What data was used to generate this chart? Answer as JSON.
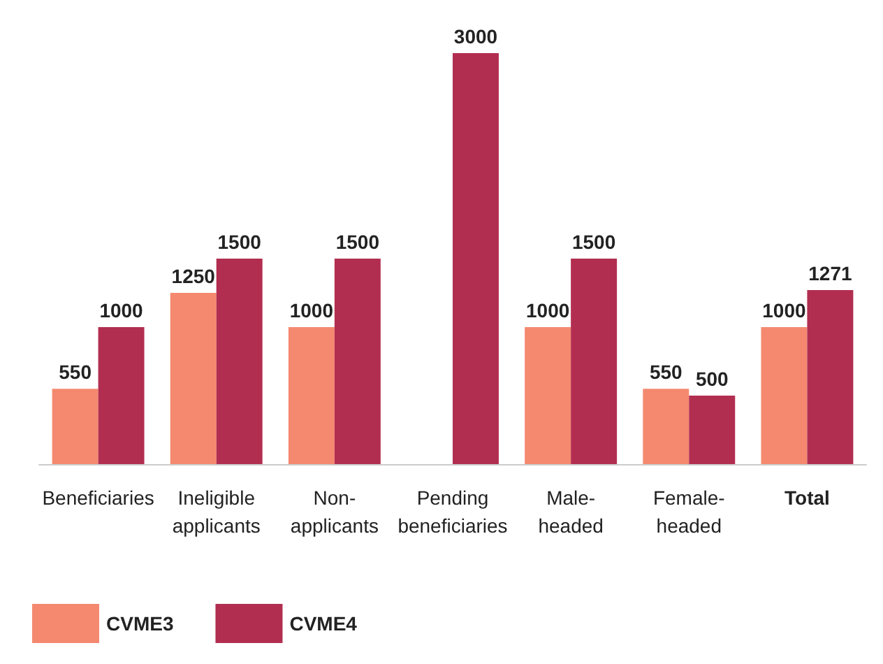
{
  "chart_data": {
    "type": "bar",
    "categories": [
      "Beneficiaries",
      "Ineligible\napplicants",
      "Non-\napplicants",
      "Pending\nbeneficiaries",
      "Male-\nheaded",
      "Female-\nheaded",
      "Total"
    ],
    "series": [
      {
        "name": "CVME3",
        "color": "#f4896f",
        "values": [
          550,
          1250,
          1000,
          null,
          1000,
          550,
          1000
        ]
      },
      {
        "name": "CVME4",
        "color": "#b22e50",
        "values": [
          1000,
          1500,
          1500,
          3000,
          1500,
          500,
          1271
        ]
      }
    ],
    "data_labels": true,
    "legend": "bottom left"
  }
}
